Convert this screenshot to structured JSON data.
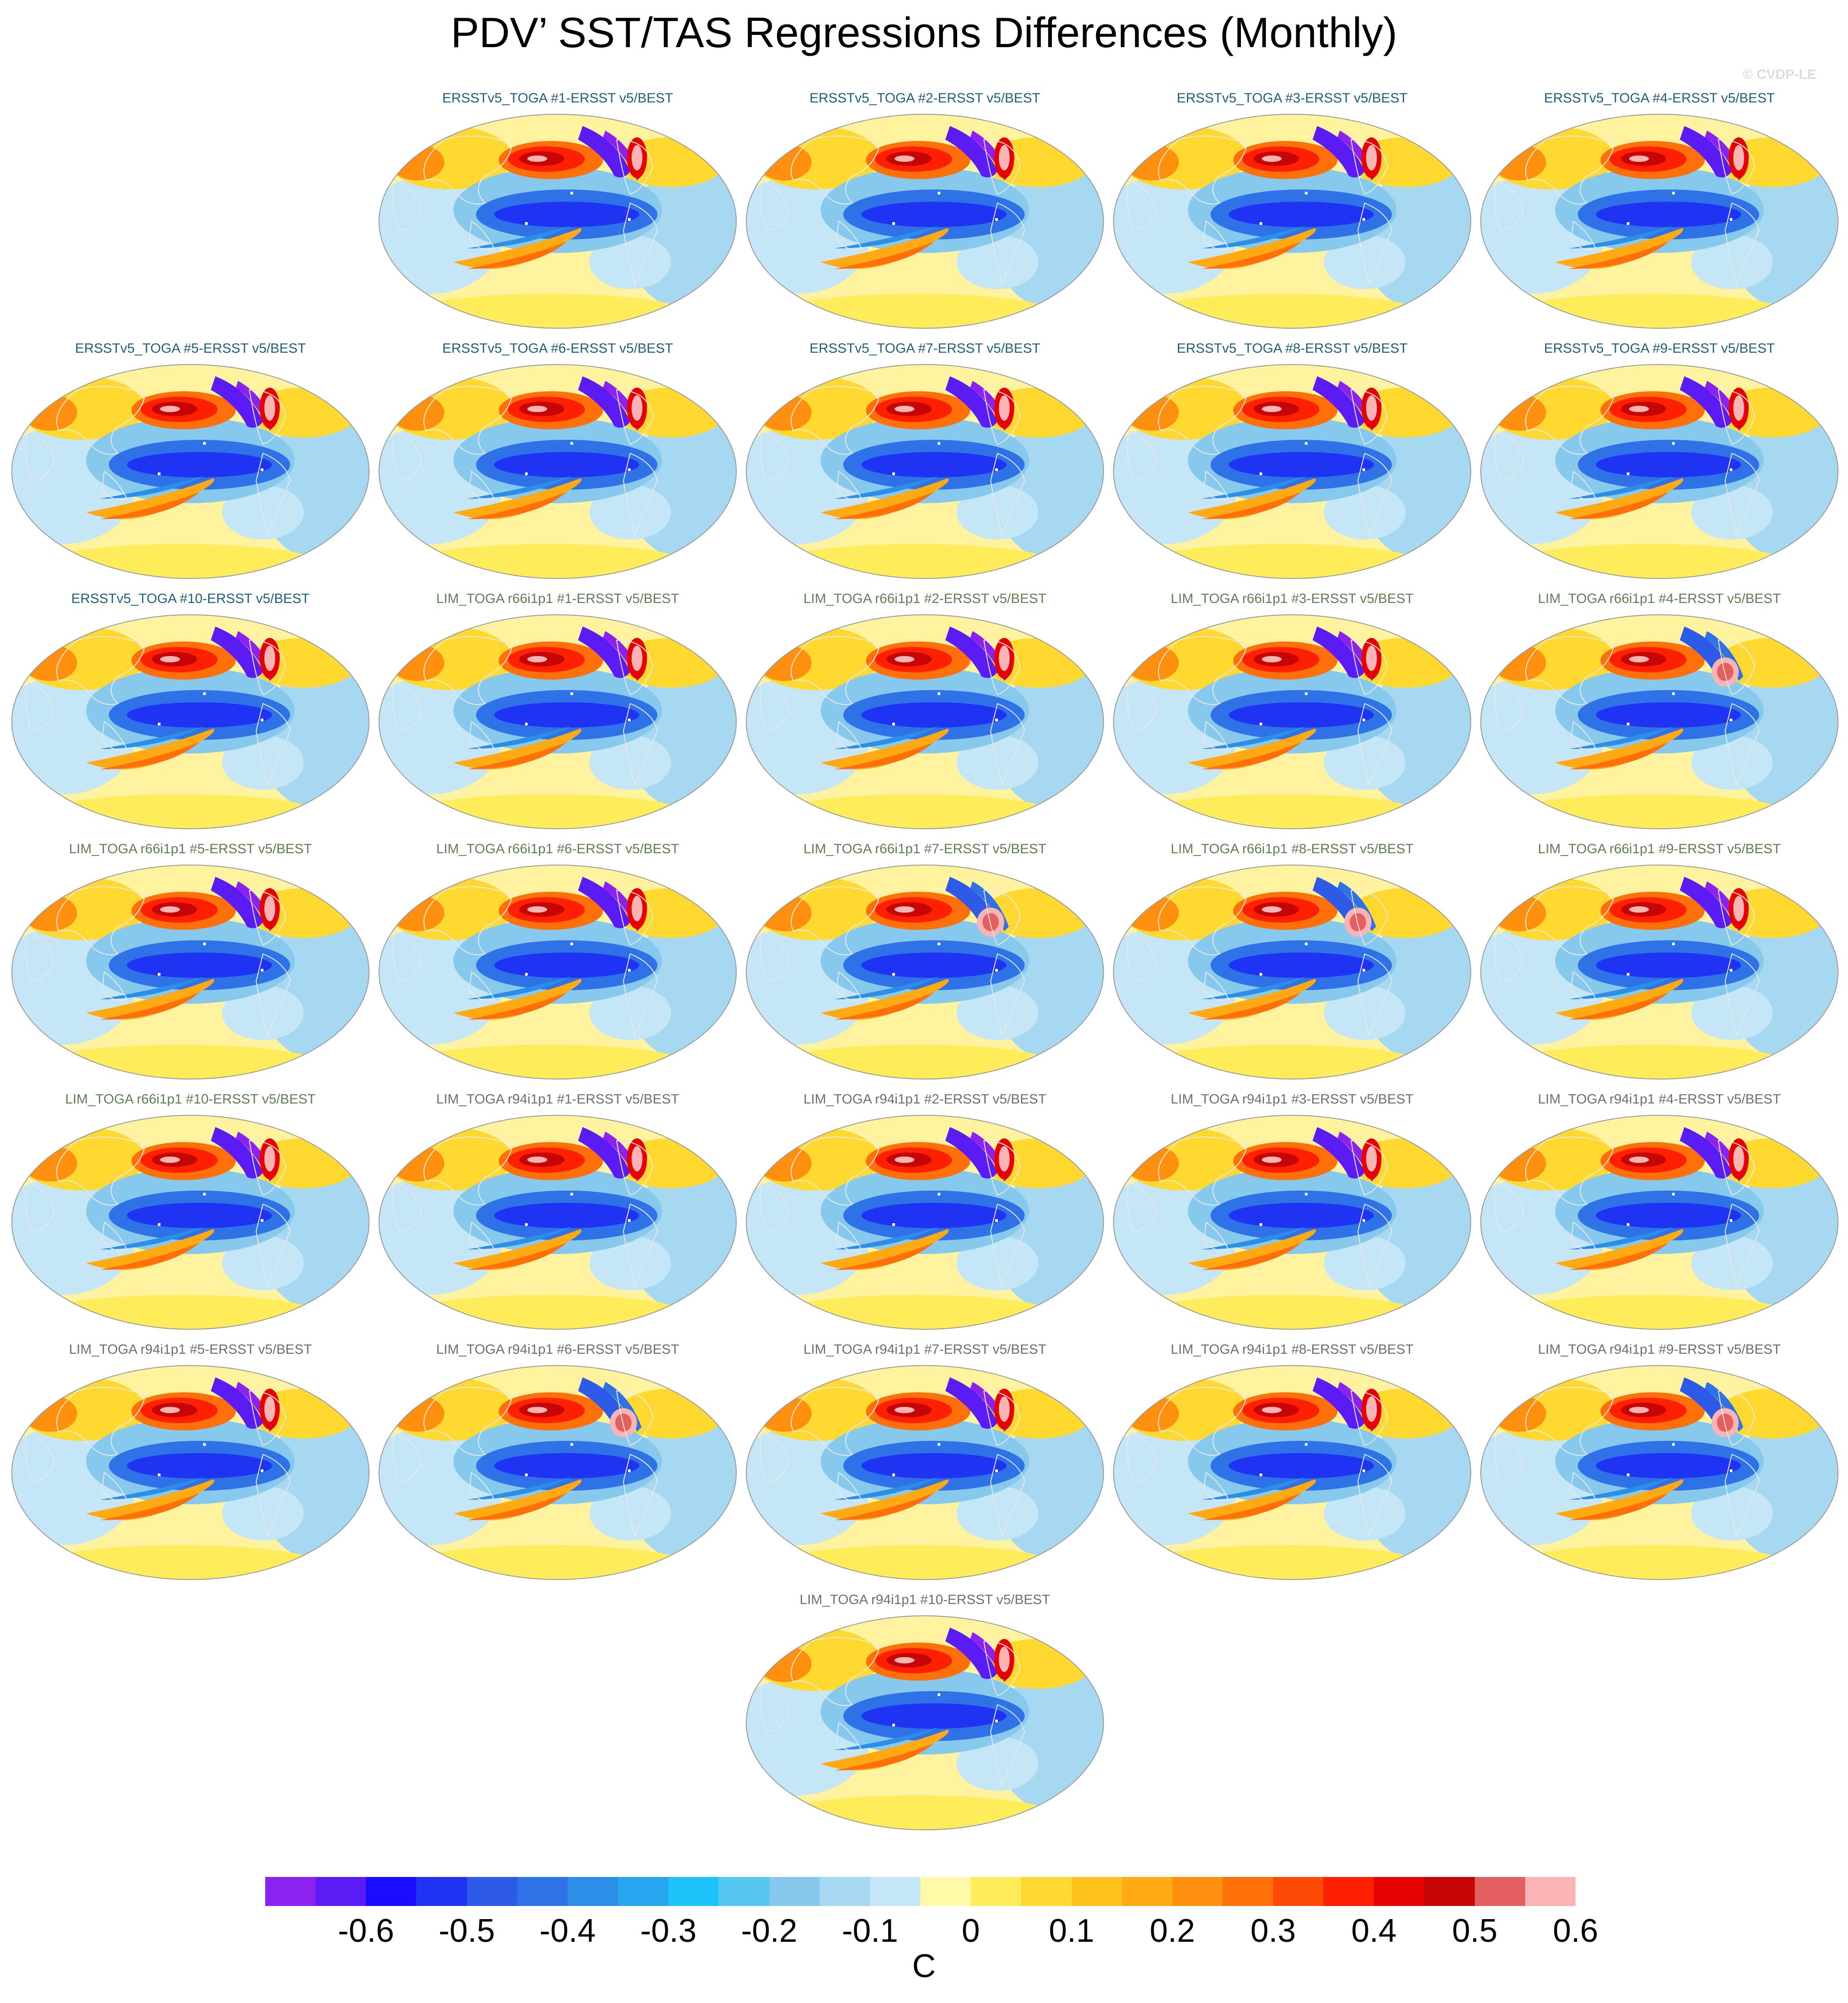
{
  "title": "PDV’ SST/TAS Regressions Differences (Monthly)",
  "copyright": "© CVDP-LE",
  "colors": {
    "ersst_label": "#1f5f7a",
    "lim66_label": "#5e7f52",
    "lim94_label": "#6e6e6e"
  },
  "panels": [
    {
      "label": "ERSSTv5_TOGA #1-ERSST v5/BEST",
      "group": "ersst",
      "variant": "standard"
    },
    {
      "label": "ERSSTv5_TOGA #2-ERSST v5/BEST",
      "group": "ersst",
      "variant": "standard"
    },
    {
      "label": "ERSSTv5_TOGA #3-ERSST v5/BEST",
      "group": "ersst",
      "variant": "standard"
    },
    {
      "label": "ERSSTv5_TOGA #4-ERSST v5/BEST",
      "group": "ersst",
      "variant": "standard"
    },
    {
      "label": "ERSSTv5_TOGA #5-ERSST v5/BEST",
      "group": "ersst",
      "variant": "standard"
    },
    {
      "label": "ERSSTv5_TOGA #6-ERSST v5/BEST",
      "group": "ersst",
      "variant": "standard"
    },
    {
      "label": "ERSSTv5_TOGA #7-ERSST v5/BEST",
      "group": "ersst",
      "variant": "standard"
    },
    {
      "label": "ERSSTv5_TOGA #8-ERSST v5/BEST",
      "group": "ersst",
      "variant": "standard"
    },
    {
      "label": "ERSSTv5_TOGA #9-ERSST v5/BEST",
      "group": "ersst",
      "variant": "standard"
    },
    {
      "label": "ERSSTv5_TOGA #10-ERSST v5/BEST",
      "group": "ersst",
      "variant": "standard"
    },
    {
      "label": "LIM_TOGA r66i1p1 #1-ERSST v5/BEST",
      "group": "lim66",
      "variant": "standard"
    },
    {
      "label": "LIM_TOGA r66i1p1 #2-ERSST v5/BEST",
      "group": "lim66",
      "variant": "standard"
    },
    {
      "label": "LIM_TOGA r66i1p1 #3-ERSST v5/BEST",
      "group": "lim66",
      "variant": "standard"
    },
    {
      "label": "LIM_TOGA r66i1p1 #4-ERSST v5/BEST",
      "group": "lim66",
      "variant": "warm"
    },
    {
      "label": "LIM_TOGA r66i1p1 #5-ERSST v5/BEST",
      "group": "lim66",
      "variant": "standard"
    },
    {
      "label": "LIM_TOGA r66i1p1 #6-ERSST v5/BEST",
      "group": "lim66",
      "variant": "standard"
    },
    {
      "label": "LIM_TOGA r66i1p1 #7-ERSST v5/BEST",
      "group": "lim66",
      "variant": "warm"
    },
    {
      "label": "LIM_TOGA r66i1p1 #8-ERSST v5/BEST",
      "group": "lim66",
      "variant": "warm"
    },
    {
      "label": "LIM_TOGA r66i1p1 #9-ERSST v5/BEST",
      "group": "lim66",
      "variant": "standard"
    },
    {
      "label": "LIM_TOGA r66i1p1 #10-ERSST v5/BEST",
      "group": "lim66",
      "variant": "standard"
    },
    {
      "label": "LIM_TOGA r94i1p1 #1-ERSST v5/BEST",
      "group": "lim94",
      "variant": "standard"
    },
    {
      "label": "LIM_TOGA r94i1p1 #2-ERSST v5/BEST",
      "group": "lim94",
      "variant": "standard"
    },
    {
      "label": "LIM_TOGA r94i1p1 #3-ERSST v5/BEST",
      "group": "lim94",
      "variant": "standard"
    },
    {
      "label": "LIM_TOGA r94i1p1 #4-ERSST v5/BEST",
      "group": "lim94",
      "variant": "standard"
    },
    {
      "label": "LIM_TOGA r94i1p1 #5-ERSST v5/BEST",
      "group": "lim94",
      "variant": "standard"
    },
    {
      "label": "LIM_TOGA r94i1p1 #6-ERSST v5/BEST",
      "group": "lim94",
      "variant": "warm"
    },
    {
      "label": "LIM_TOGA r94i1p1 #7-ERSST v5/BEST",
      "group": "lim94",
      "variant": "standard"
    },
    {
      "label": "LIM_TOGA r94i1p1 #8-ERSST v5/BEST",
      "group": "lim94",
      "variant": "standard"
    },
    {
      "label": "LIM_TOGA r94i1p1 #9-ERSST v5/BEST",
      "group": "lim94",
      "variant": "warm"
    },
    {
      "label": "LIM_TOGA r94i1p1 #10-ERSST v5/BEST",
      "group": "lim94",
      "variant": "standard"
    }
  ],
  "colorbar": {
    "colors": [
      "#8b22f0",
      "#5a1bf5",
      "#1a0cff",
      "#1f34f2",
      "#2d5ae6",
      "#2f72e8",
      "#2d8ee8",
      "#27a5ef",
      "#1cc2f8",
      "#55c6f0",
      "#86c9ec",
      "#a6d8f2",
      "#c4e6f7",
      "#fffaa8",
      "#ffec5a",
      "#ffd830",
      "#ffc21c",
      "#ffa913",
      "#ff8f0e",
      "#ff6f0a",
      "#ff4a06",
      "#ff2002",
      "#e60000",
      "#c60606",
      "#e36060",
      "#fab4b4"
    ],
    "ticks": [
      "-0.6",
      "-0.5",
      "-0.4",
      "-0.3",
      "-0.2",
      "-0.1",
      "0",
      "0.1",
      "0.2",
      "0.3",
      "0.4",
      "0.5",
      "0.6"
    ],
    "unit": "C"
  }
}
